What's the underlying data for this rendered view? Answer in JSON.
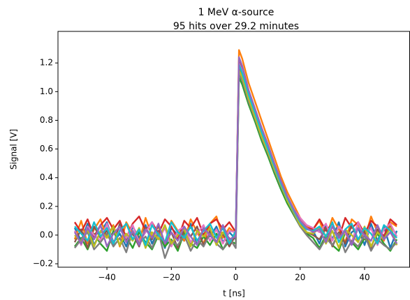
{
  "chart_data": {
    "type": "line",
    "title": "1 MeV α-source",
    "subtitle": "95 hits over 29.2 minutes",
    "x_label": "t [ns]",
    "y_label": "Signal [V]",
    "xlim": [
      -55.2,
      54.1
    ],
    "ylim": [
      -0.224,
      1.42
    ],
    "xticks": [
      {
        "value": -40,
        "label": "−40"
      },
      {
        "value": -20,
        "label": "−20"
      },
      0,
      20,
      40
    ],
    "yticks": [
      {
        "value": -0.2,
        "label": "−0.2"
      },
      {
        "value": 0,
        "label": "0.0"
      },
      0.2,
      0.4,
      0.6,
      0.8,
      {
        "value": 1,
        "label": "1.0"
      },
      1.2
    ],
    "grid": false,
    "x": [
      -50,
      -48,
      -46,
      -44,
      -42,
      -40,
      -38,
      -36,
      -34,
      -32,
      -30,
      -28,
      -26,
      -24,
      -22,
      -20,
      -18,
      -16,
      -14,
      -12,
      -10,
      -8,
      -6,
      -4,
      -2,
      0,
      1,
      2,
      4,
      6,
      8,
      10,
      12,
      14,
      16,
      18,
      20,
      22,
      24,
      26,
      28,
      30,
      32,
      34,
      36,
      38,
      40,
      42,
      44,
      46,
      48,
      50
    ],
    "series": [
      {
        "color": "#1f77b4",
        "values": [
          0.05,
          -0.04,
          0.08,
          -0.07,
          0.02,
          0.09,
          -0.05,
          0.01,
          -0.08,
          0.06,
          -0.02,
          0.07,
          -0.06,
          0.03,
          -0.09,
          0.05,
          0.0,
          -0.04,
          0.08,
          -0.07,
          0.04,
          -0.01,
          0.06,
          -0.05,
          0.02,
          -0.03,
          1.18,
          1.12,
          0.97,
          0.86,
          0.7,
          0.61,
          0.47,
          0.37,
          0.25,
          0.18,
          0.08,
          0.05,
          0.03,
          -0.06,
          0.07,
          -0.03,
          0.09,
          -0.08,
          0.02,
          0.05,
          -0.07,
          0.08,
          -0.04,
          0.06,
          -0.09,
          0.03
        ]
      },
      {
        "color": "#ff7f0e",
        "values": [
          -0.03,
          0.1,
          -0.06,
          0.04,
          0.11,
          -0.02,
          0.07,
          -0.08,
          0.09,
          0.01,
          -0.05,
          0.12,
          -0.01,
          0.06,
          -0.07,
          0.1,
          0.03,
          -0.04,
          0.11,
          0.02,
          -0.06,
          0.08,
          0.13,
          -0.02,
          0.05,
          0.01,
          1.29,
          1.23,
          1.06,
          0.93,
          0.8,
          0.67,
          0.54,
          0.41,
          0.3,
          0.21,
          0.12,
          0.06,
          0.04,
          0.1,
          -0.02,
          0.12,
          0.04,
          -0.05,
          0.11,
          0.07,
          -0.03,
          0.13,
          0.02,
          -0.04,
          0.09,
          0.06
        ]
      },
      {
        "color": "#2ca02c",
        "values": [
          -0.08,
          -0.02,
          -0.1,
          0.01,
          -0.06,
          -0.11,
          0.03,
          -0.07,
          -0.01,
          -0.09,
          0.02,
          -0.05,
          -0.1,
          0.0,
          -0.08,
          -0.03,
          -0.11,
          0.02,
          -0.06,
          -0.09,
          -0.01,
          -0.07,
          0.01,
          -0.1,
          -0.04,
          -0.06,
          1.1,
          1.05,
          0.91,
          0.79,
          0.66,
          0.55,
          0.43,
          0.32,
          0.22,
          0.14,
          0.06,
          0.01,
          -0.02,
          -0.09,
          0.0,
          -0.07,
          -0.11,
          0.02,
          -0.05,
          -0.1,
          -0.02,
          -0.08,
          0.01,
          -0.06,
          -0.11,
          -0.03
        ]
      },
      {
        "color": "#d62728",
        "values": [
          0.09,
          0.02,
          0.11,
          -0.01,
          0.07,
          0.12,
          0.04,
          0.1,
          -0.02,
          0.08,
          0.13,
          0.03,
          0.09,
          0.01,
          0.11,
          0.06,
          -0.03,
          0.1,
          0.05,
          0.12,
          0.0,
          0.08,
          0.11,
          0.04,
          0.09,
          0.02,
          1.22,
          1.16,
          1.0,
          0.87,
          0.74,
          0.62,
          0.49,
          0.38,
          0.27,
          0.18,
          0.1,
          0.05,
          0.04,
          0.11,
          0.03,
          0.08,
          -0.02,
          0.12,
          0.05,
          0.09,
          0.01,
          0.1,
          0.06,
          -0.01,
          0.11,
          0.07
        ]
      },
      {
        "color": "#8c564b",
        "values": [
          -0.05,
          0.04,
          -0.09,
          0.06,
          -0.02,
          0.03,
          -0.07,
          0.08,
          -0.04,
          0.01,
          -0.08,
          0.05,
          -0.03,
          0.07,
          -0.06,
          0.02,
          -0.09,
          0.04,
          -0.01,
          0.06,
          -0.07,
          0.03,
          -0.05,
          0.01,
          -0.08,
          0.0,
          1.16,
          1.11,
          0.95,
          0.83,
          0.7,
          0.58,
          0.46,
          0.35,
          0.25,
          0.16,
          0.08,
          0.02,
          0.0,
          -0.03,
          0.05,
          -0.08,
          0.02,
          -0.06,
          0.07,
          -0.04,
          0.03,
          -0.09,
          0.04,
          -0.02,
          0.06,
          -0.07
        ]
      },
      {
        "color": "#e377c2",
        "values": [
          0.03,
          -0.07,
          0.06,
          0.0,
          -0.04,
          0.08,
          -0.06,
          0.04,
          -0.02,
          0.07,
          -0.05,
          0.02,
          0.09,
          -0.03,
          0.05,
          -0.08,
          0.03,
          0.06,
          -0.05,
          0.01,
          0.07,
          -0.04,
          0.04,
          -0.06,
          0.03,
          0.02,
          1.2,
          1.14,
          0.99,
          0.86,
          0.73,
          0.61,
          0.48,
          0.37,
          0.27,
          0.18,
          0.12,
          0.07,
          0.05,
          0.02,
          0.08,
          -0.04,
          0.06,
          0.01,
          -0.05,
          0.09,
          -0.02,
          0.05,
          -0.07,
          0.04,
          0.08,
          -0.01
        ]
      },
      {
        "color": "#7f7f7f",
        "values": [
          -0.09,
          -0.03,
          0.02,
          -0.1,
          -0.05,
          0.01,
          -0.08,
          -0.02,
          -0.12,
          0.03,
          -0.06,
          -0.01,
          -0.09,
          0.02,
          -0.16,
          -0.04,
          -0.07,
          0.0,
          -0.11,
          -0.03,
          -0.08,
          0.01,
          -0.06,
          -0.1,
          -0.02,
          -0.09,
          1.12,
          1.08,
          0.93,
          0.81,
          0.68,
          0.57,
          0.45,
          0.34,
          0.24,
          0.15,
          0.06,
          0.0,
          -0.05,
          -0.1,
          -0.02,
          -0.07,
          0.01,
          -0.12,
          -0.04,
          -0.08,
          0.0,
          -0.11,
          -0.03,
          -0.07,
          -0.1,
          -0.05
        ]
      },
      {
        "color": "#bcbd22",
        "values": [
          0.0,
          -0.05,
          0.04,
          -0.08,
          0.03,
          -0.02,
          0.06,
          -0.07,
          0.01,
          -0.04,
          0.05,
          -0.09,
          0.02,
          -0.03,
          0.07,
          -0.06,
          0.0,
          0.04,
          -0.08,
          0.03,
          -0.01,
          0.05,
          -0.07,
          0.02,
          -0.04,
          0.01,
          1.15,
          1.1,
          0.95,
          0.82,
          0.69,
          0.58,
          0.46,
          0.35,
          0.24,
          0.16,
          0.07,
          0.02,
          0.01,
          0.05,
          -0.06,
          0.03,
          -0.09,
          0.04,
          0.0,
          -0.05,
          0.06,
          -0.08,
          0.02,
          -0.03,
          0.05,
          -0.07
        ]
      },
      {
        "color": "#17becf",
        "values": [
          0.06,
          0.01,
          -0.04,
          0.09,
          -0.01,
          0.05,
          -0.06,
          0.03,
          0.08,
          -0.03,
          0.04,
          -0.07,
          0.07,
          0.0,
          -0.05,
          0.09,
          0.02,
          -0.02,
          0.06,
          -0.04,
          0.03,
          0.08,
          -0.02,
          0.05,
          -0.06,
          0.03,
          1.19,
          1.13,
          0.98,
          0.85,
          0.72,
          0.6,
          0.48,
          0.36,
          0.26,
          0.17,
          0.09,
          0.04,
          0.03,
          0.06,
          -0.01,
          0.09,
          -0.05,
          0.04,
          0.08,
          -0.03,
          0.05,
          0.01,
          -0.06,
          0.07,
          0.03,
          -0.02
        ]
      },
      {
        "color": "#9467bd",
        "values": [
          0.02,
          -0.06,
          0.05,
          -0.03,
          0.07,
          -0.08,
          0.01,
          0.06,
          -0.05,
          0.03,
          -0.07,
          0.04,
          -0.02,
          0.08,
          -0.06,
          0.02,
          -0.04,
          0.06,
          -0.01,
          -0.07,
          0.05,
          0.0,
          -0.05,
          0.07,
          -0.03,
          -0.01,
          1.24,
          1.18,
          1.01,
          0.88,
          0.75,
          0.63,
          0.5,
          0.38,
          0.27,
          0.18,
          0.1,
          0.05,
          0.02,
          0.04,
          -0.05,
          0.06,
          -0.02,
          0.03,
          -0.07,
          0.05,
          0.0,
          -0.04,
          0.07,
          -0.03,
          0.02,
          -0.06
        ]
      }
    ]
  }
}
